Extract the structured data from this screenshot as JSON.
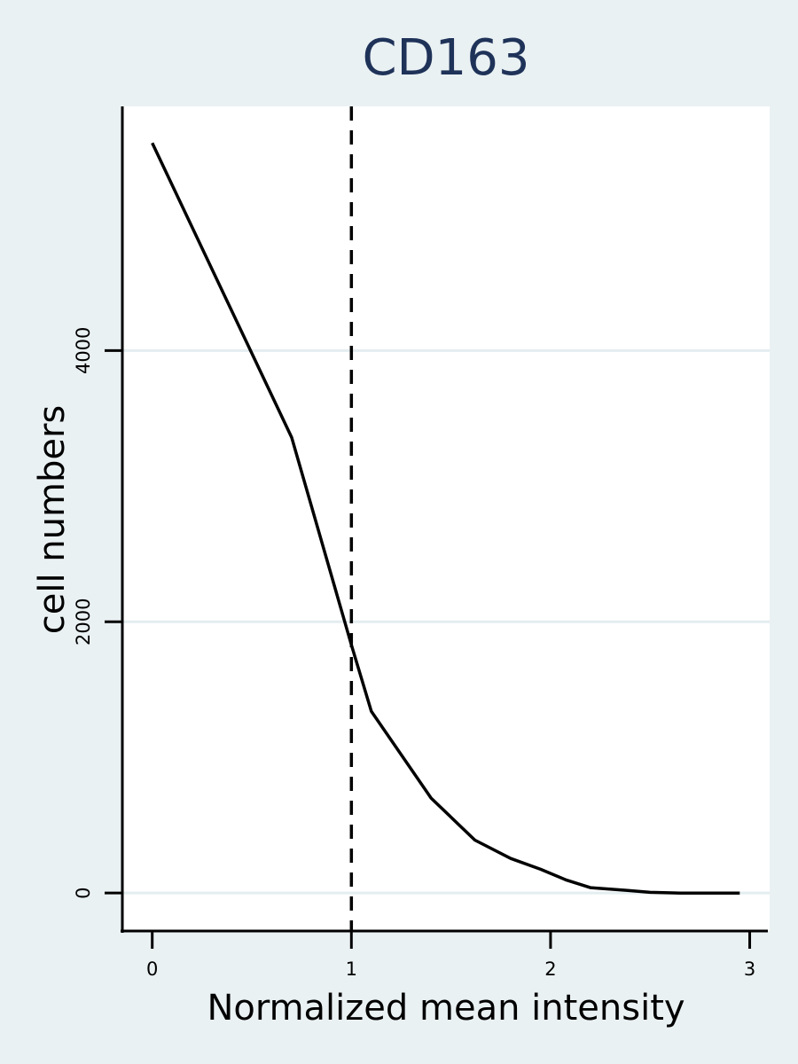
{
  "chart_data": {
    "type": "line",
    "title": "CD163",
    "xlabel": "Normalized mean intensity",
    "ylabel": "cell numbers",
    "x_ticks": [
      0,
      1,
      2,
      3
    ],
    "x_tick_labels": [
      "0",
      "1",
      "2",
      "3"
    ],
    "y_ticks": [
      0,
      2000,
      4000
    ],
    "y_tick_labels": [
      "0",
      "2000",
      "4000"
    ],
    "xlim": [
      -0.15,
      3.1
    ],
    "ylim": [
      -280,
      5800
    ],
    "grid": "horizontal",
    "legend": "none",
    "series": [
      {
        "x": [
          0,
          0.7,
          1.0,
          1.1,
          1.4,
          1.62,
          1.8,
          1.95,
          2.08,
          2.2,
          2.38,
          2.5,
          2.65,
          2.8,
          2.95
        ],
        "y": [
          5530,
          3360,
          1830,
          1340,
          700,
          390,
          255,
          175,
          95,
          40,
          20,
          5,
          0,
          0,
          0
        ]
      }
    ],
    "reference_lines": [
      {
        "axis": "x",
        "value": 1.0,
        "style": "dashed"
      }
    ],
    "colors": {
      "background": "#eaf1f3",
      "plot_area": "#ffffff",
      "grid": "#eaf1f3",
      "line": "#000000",
      "title": "#1f3359"
    }
  }
}
